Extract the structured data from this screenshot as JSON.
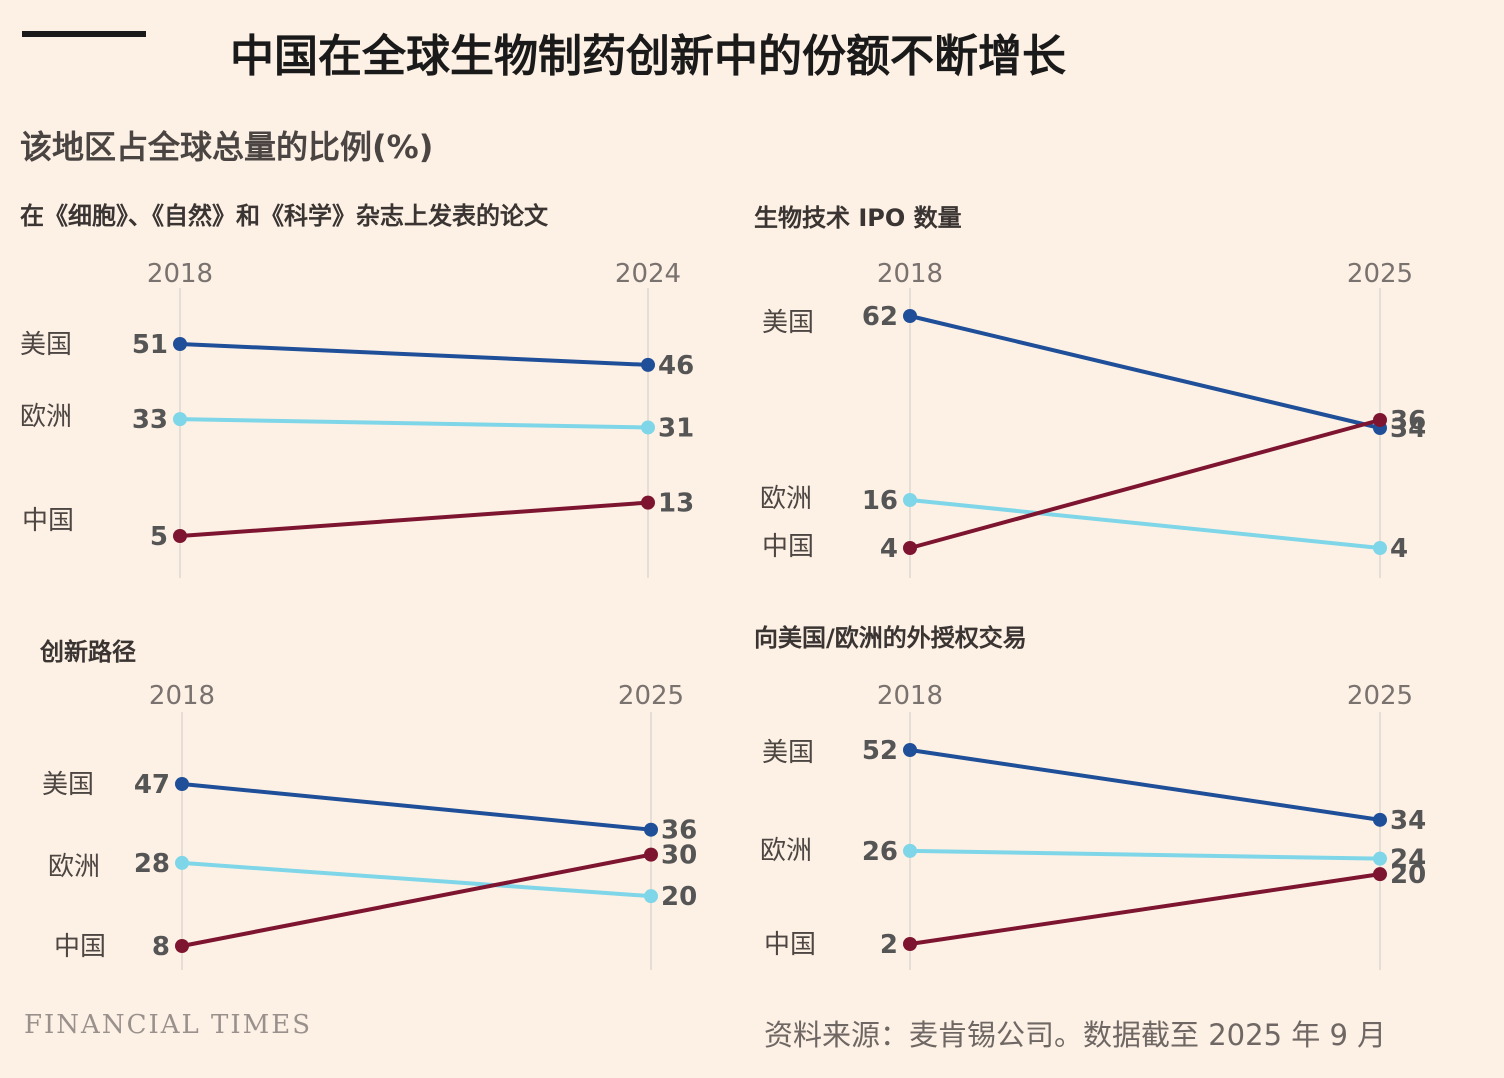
{
  "header": {
    "title": "中国在全球生物制药创新中的份额不断增长",
    "subtitle": "该地区占全球总量的比例(%)"
  },
  "footer": {
    "logo": "FINANCIAL TIMES",
    "source": "资料来源：麦肯锡公司。数据截至 2025 年 9 月"
  },
  "colors": {
    "usa": "#1f4f99",
    "europe": "#7fd6e8",
    "china": "#7d1530",
    "gridline": "#e6ddd6"
  },
  "chart_data": [
    {
      "type": "line",
      "title": "在《细胞》、《自然》和《科学》杂志上发表的论文",
      "x": [
        "2018",
        "2024"
      ],
      "series": [
        {
          "name": "美国",
          "values": [
            51,
            46
          ]
        },
        {
          "name": "欧洲",
          "values": [
            33,
            31
          ]
        },
        {
          "name": "中国",
          "values": [
            5,
            13
          ]
        }
      ]
    },
    {
      "type": "line",
      "title": "生物技术 IPO 数量",
      "x": [
        "2018",
        "2025"
      ],
      "series": [
        {
          "name": "美国",
          "values": [
            62,
            34
          ]
        },
        {
          "name": "欧洲",
          "values": [
            16,
            4
          ]
        },
        {
          "name": "中国",
          "values": [
            4,
            36
          ]
        }
      ]
    },
    {
      "type": "line",
      "title": "创新路径",
      "x": [
        "2018",
        "2025"
      ],
      "series": [
        {
          "name": "美国",
          "values": [
            47,
            36
          ]
        },
        {
          "name": "欧洲",
          "values": [
            28,
            20
          ]
        },
        {
          "name": "中国",
          "values": [
            8,
            30
          ]
        }
      ]
    },
    {
      "type": "line",
      "title": "向美国/欧洲的外授权交易",
      "x": [
        "2018",
        "2025"
      ],
      "series": [
        {
          "name": "美国",
          "values": [
            52,
            34
          ]
        },
        {
          "name": "欧洲",
          "values": [
            26,
            24
          ]
        },
        {
          "name": "中国",
          "values": [
            2,
            20
          ]
        }
      ]
    }
  ]
}
